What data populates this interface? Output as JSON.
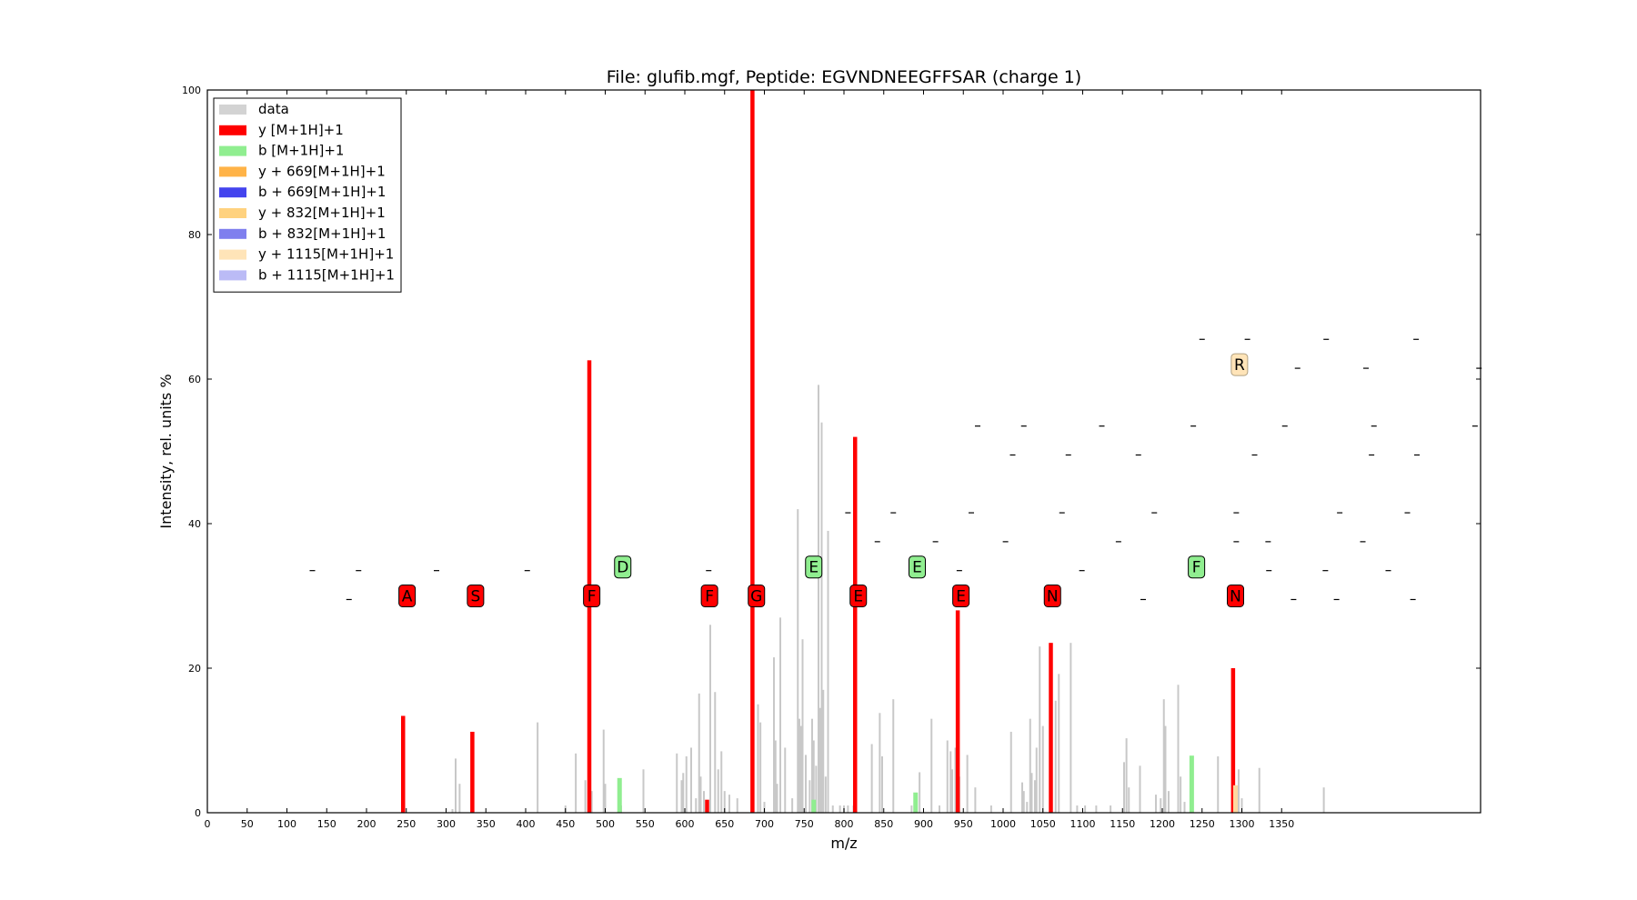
{
  "chart_data": {
    "type": "bar",
    "title": "File: glufib.mgf, Peptide: EGVNDNEEGFFSAR (charge 1)",
    "xlabel": "m/z",
    "ylabel": "Intensity, rel. units %",
    "xlim": [
      0,
      1600
    ],
    "ylim": [
      0,
      100
    ],
    "x_ticks": [
      0,
      50,
      100,
      150,
      200,
      250,
      300,
      350,
      400,
      450,
      500,
      550,
      600,
      650,
      700,
      750,
      800,
      850,
      900,
      950,
      1000,
      1050,
      1100,
      1150,
      1200,
      1250,
      1300,
      1350
    ],
    "y_ticks": [
      0,
      20,
      40,
      60,
      80,
      100
    ],
    "grid": false,
    "legend_position": "top-left",
    "legend": [
      {
        "label": "data",
        "color": "#d3d3d3"
      },
      {
        "label": "y [M+1H]+1",
        "color": "#ff0000"
      },
      {
        "label": "b [M+1H]+1",
        "color": "#90ee90"
      },
      {
        "label": "y + 669[M+1H]+1",
        "color": "#ffb347"
      },
      {
        "label": "b + 669[M+1H]+1",
        "color": "#4444ee"
      },
      {
        "label": "y + 832[M+1H]+1",
        "color": "#ffd27f"
      },
      {
        "label": "b + 832[M+1H]+1",
        "color": "#7f7fee"
      },
      {
        "label": "y + 1115[M+1H]+1",
        "color": "#ffe4b8"
      },
      {
        "label": "b + 1115[M+1H]+1",
        "color": "#bbbbf6"
      }
    ],
    "series": [
      {
        "name": "data",
        "color": "#c8c8c8",
        "points": [
          [
            308,
            0.5
          ],
          [
            312,
            7.5
          ],
          [
            317,
            4
          ],
          [
            415,
            12.5
          ],
          [
            450,
            1
          ],
          [
            463,
            8.2
          ],
          [
            475,
            4.5
          ],
          [
            483,
            3
          ],
          [
            498,
            11.5
          ],
          [
            500,
            4
          ],
          [
            520,
            1
          ],
          [
            548,
            6
          ],
          [
            590,
            8.2
          ],
          [
            596,
            4.5
          ],
          [
            598,
            5.5
          ],
          [
            602,
            7.8
          ],
          [
            608,
            9
          ],
          [
            614,
            2
          ],
          [
            618,
            16.5
          ],
          [
            620,
            5
          ],
          [
            624,
            3
          ],
          [
            628,
            1
          ],
          [
            632,
            26
          ],
          [
            638,
            16.7
          ],
          [
            642,
            6
          ],
          [
            646,
            8.5
          ],
          [
            650,
            3
          ],
          [
            656,
            2.5
          ],
          [
            666,
            2
          ],
          [
            686,
            3
          ],
          [
            692,
            15
          ],
          [
            695,
            12.5
          ],
          [
            700,
            1.5
          ],
          [
            712,
            21.5
          ],
          [
            714,
            10
          ],
          [
            716,
            4
          ],
          [
            720,
            27
          ],
          [
            726,
            9
          ],
          [
            735,
            2
          ],
          [
            742,
            42
          ],
          [
            744,
            13
          ],
          [
            746,
            12
          ],
          [
            748,
            24
          ],
          [
            752,
            8
          ],
          [
            757,
            4.5
          ],
          [
            760,
            13
          ],
          [
            762,
            10
          ],
          [
            765,
            6.5
          ],
          [
            768,
            59.2
          ],
          [
            770,
            14.5
          ],
          [
            772,
            54
          ],
          [
            774,
            17
          ],
          [
            777,
            5
          ],
          [
            780,
            39
          ],
          [
            786,
            1
          ],
          [
            795,
            1
          ],
          [
            800,
            1
          ],
          [
            805,
            1
          ],
          [
            812,
            1
          ],
          [
            835,
            9.5
          ],
          [
            845,
            13.8
          ],
          [
            848,
            7.8
          ],
          [
            862,
            15.7
          ],
          [
            885,
            1
          ],
          [
            895,
            5.6
          ],
          [
            910,
            13
          ],
          [
            920,
            1
          ],
          [
            930,
            10
          ],
          [
            934,
            8.5
          ],
          [
            936,
            6
          ],
          [
            940,
            9
          ],
          [
            945,
            5
          ],
          [
            955,
            8
          ],
          [
            965,
            3.5
          ],
          [
            985,
            1
          ],
          [
            1010,
            11.2
          ],
          [
            1024,
            4.2
          ],
          [
            1026,
            3
          ],
          [
            1030,
            1.5
          ],
          [
            1034,
            13
          ],
          [
            1036,
            5.5
          ],
          [
            1040,
            4.5
          ],
          [
            1042,
            9
          ],
          [
            1046,
            23
          ],
          [
            1050,
            12
          ],
          [
            1060,
            4
          ],
          [
            1066,
            15.5
          ],
          [
            1070,
            19.2
          ],
          [
            1085,
            23.5
          ],
          [
            1093,
            1
          ],
          [
            1103,
            1
          ],
          [
            1117,
            1
          ],
          [
            1135,
            1
          ],
          [
            1152,
            7
          ],
          [
            1155,
            10.3
          ],
          [
            1158,
            3.5
          ],
          [
            1172,
            6.5
          ],
          [
            1192,
            2.5
          ],
          [
            1198,
            2
          ],
          [
            1202,
            15.7
          ],
          [
            1204,
            12
          ],
          [
            1208,
            3
          ],
          [
            1220,
            17.7
          ],
          [
            1223,
            5
          ],
          [
            1228,
            1.5
          ],
          [
            1270,
            7.8
          ],
          [
            1296,
            6
          ],
          [
            1300,
            2
          ],
          [
            1322,
            6.2
          ],
          [
            1403,
            3.5
          ]
        ]
      },
      {
        "name": "y [M+1H]+1",
        "color": "#ff0000",
        "points": [
          [
            246,
            13.4
          ],
          [
            333,
            11.2
          ],
          [
            480,
            62.6
          ],
          [
            628,
            1.8
          ],
          [
            685,
            100
          ],
          [
            814,
            52
          ],
          [
            943,
            28
          ],
          [
            1060,
            23.5
          ],
          [
            1289,
            20
          ]
        ]
      },
      {
        "name": "b [M+1H]+1",
        "color": "#90ee90",
        "points": [
          [
            518,
            4.8
          ],
          [
            762,
            1.8
          ],
          [
            890,
            2.8
          ],
          [
            1237,
            7.9
          ]
        ]
      },
      {
        "name": "y + 1115[M+1H]+1",
        "color": "#ffd9a0",
        "points": [
          [
            1292,
            3.8
          ]
        ]
      }
    ],
    "annotations": [
      {
        "text": "A",
        "x": 251,
        "y": 30,
        "style": "y"
      },
      {
        "text": "S",
        "x": 337,
        "y": 30,
        "style": "y"
      },
      {
        "text": "F",
        "x": 483,
        "y": 30,
        "style": "y"
      },
      {
        "text": "D",
        "x": 522,
        "y": 34,
        "style": "b"
      },
      {
        "text": "F",
        "x": 631,
        "y": 30,
        "style": "y"
      },
      {
        "text": "G",
        "x": 690,
        "y": 30,
        "style": "y"
      },
      {
        "text": "E",
        "x": 762,
        "y": 34,
        "style": "b"
      },
      {
        "text": "E",
        "x": 818,
        "y": 30,
        "style": "y"
      },
      {
        "text": "E",
        "x": 892,
        "y": 34,
        "style": "b"
      },
      {
        "text": "E",
        "x": 947,
        "y": 30,
        "style": "y"
      },
      {
        "text": "N",
        "x": 1062,
        "y": 30,
        "style": "y"
      },
      {
        "text": "F",
        "x": 1243,
        "y": 34,
        "style": "b"
      },
      {
        "text": "N",
        "x": 1292,
        "y": 30,
        "style": "y"
      },
      {
        "text": "R",
        "x": 1297,
        "y": 62,
        "style": "y2"
      }
    ],
    "dash_marks": [
      [
        132,
        33.5
      ],
      [
        178,
        29.5
      ],
      [
        190,
        33.5
      ],
      [
        288,
        33.5
      ],
      [
        402,
        33.5
      ],
      [
        630,
        33.5
      ],
      [
        805,
        41.5
      ],
      [
        842,
        37.5
      ],
      [
        862,
        41.5
      ],
      [
        915,
        37.5
      ],
      [
        960,
        41.5
      ],
      [
        945,
        33.5
      ],
      [
        1003,
        37.5
      ],
      [
        1074,
        41.5
      ],
      [
        1099,
        33.5
      ],
      [
        1145,
        37.5
      ],
      [
        1176,
        29.5
      ],
      [
        1190,
        41.5
      ],
      [
        1293,
        41.5
      ],
      [
        1293,
        37.5
      ],
      [
        1333,
        37.5
      ],
      [
        1334,
        33.5
      ],
      [
        1365,
        29.5
      ],
      [
        1405,
        33.5
      ],
      [
        1419,
        29.5
      ],
      [
        1423,
        41.5
      ],
      [
        1452,
        37.5
      ],
      [
        1484,
        33.5
      ],
      [
        1508,
        41.5
      ],
      [
        1515,
        29.5
      ],
      [
        968,
        53.5
      ],
      [
        1026,
        53.5
      ],
      [
        1124,
        53.5
      ],
      [
        1239,
        53.5
      ],
      [
        1354,
        53.5
      ],
      [
        1466,
        53.5
      ],
      [
        1593,
        53.5
      ],
      [
        1012,
        49.5
      ],
      [
        1082,
        49.5
      ],
      [
        1170,
        49.5
      ],
      [
        1316,
        49.5
      ],
      [
        1463,
        49.5
      ],
      [
        1520,
        49.5
      ],
      [
        1250,
        65.5
      ],
      [
        1307,
        65.5
      ],
      [
        1406,
        65.5
      ],
      [
        1519,
        65.5
      ],
      [
        1370,
        61.5
      ],
      [
        1456,
        61.5
      ],
      [
        1598,
        61.5
      ]
    ]
  }
}
